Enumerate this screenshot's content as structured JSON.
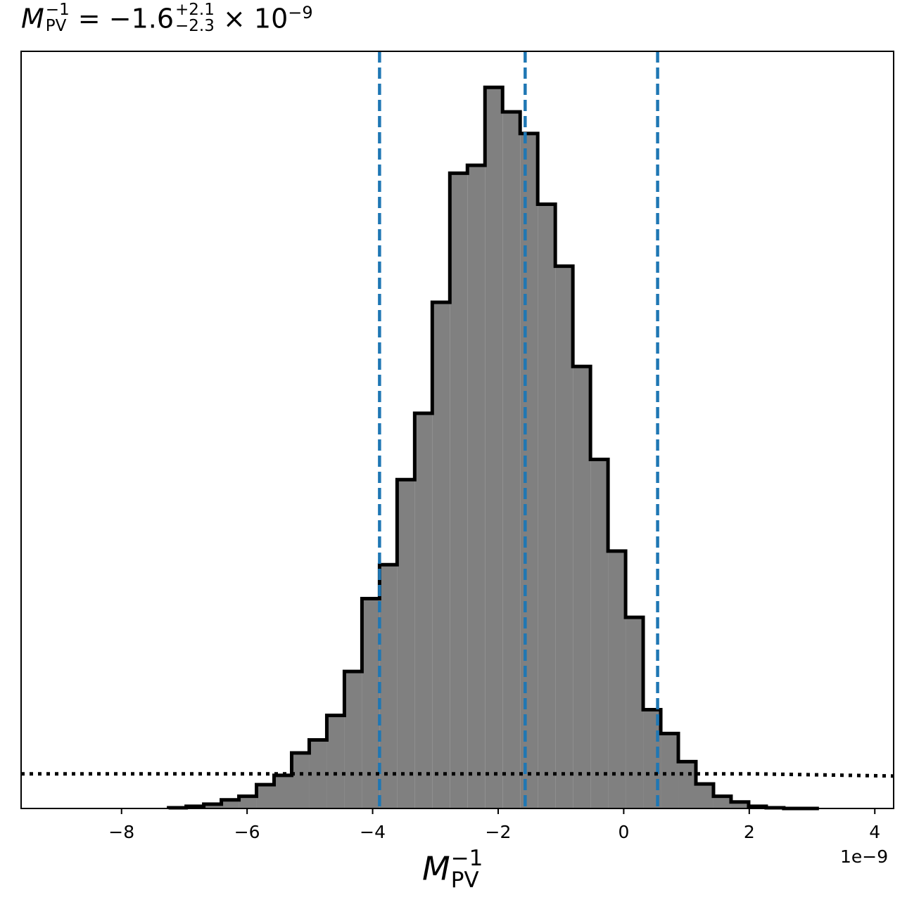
{
  "title": {
    "symbol": "M",
    "symbol_sub": "PV",
    "symbol_sup": "−1",
    "equals": "=",
    "value": "−1.6",
    "plus_err": "+2.1",
    "minus_err": "−2.3",
    "times_power": "× 10",
    "exponent": "−9"
  },
  "xlabel": {
    "symbol": "M",
    "sub": "PV",
    "sup": "−1"
  },
  "offset_text": "1e−9",
  "chart_data": {
    "type": "histogram",
    "x_scale": 1e-09,
    "xlim": [
      -9.6,
      4.3
    ],
    "ylim": [
      0,
      1.05
    ],
    "x_ticks": [
      -8,
      -6,
      -4,
      -2,
      0,
      2,
      4
    ],
    "x_tick_labels": [
      "−8",
      "−6",
      "−4",
      "−2",
      "0",
      "2",
      "4"
    ],
    "y_ticks_shown": false,
    "bins": {
      "edges": [
        -7.25,
        -6.97,
        -6.69,
        -6.41,
        -6.13,
        -5.85,
        -5.57,
        -5.29,
        -5.01,
        -4.73,
        -4.45,
        -4.17,
        -3.89,
        -3.61,
        -3.33,
        -3.05,
        -2.77,
        -2.49,
        -2.21,
        -1.93,
        -1.65,
        -1.37,
        -1.09,
        -0.81,
        -0.53,
        -0.25,
        0.03,
        0.31,
        0.59,
        0.87,
        1.15,
        1.43,
        1.71,
        1.99,
        2.27,
        2.55,
        2.83,
        3.11
      ],
      "heights": [
        0.001,
        0.003,
        0.006,
        0.012,
        0.017,
        0.033,
        0.046,
        0.077,
        0.095,
        0.129,
        0.19,
        0.291,
        0.338,
        0.456,
        0.548,
        0.702,
        0.881,
        0.892,
        1.0,
        0.966,
        0.936,
        0.838,
        0.752,
        0.613,
        0.484,
        0.357,
        0.265,
        0.137,
        0.104,
        0.065,
        0.034,
        0.017,
        0.009,
        0.003,
        0.001,
        0.0,
        0.0
      ]
    },
    "vlines": {
      "style": "dashed",
      "color": "#1f77b4",
      "values": [
        -3.89,
        -1.57,
        0.54
      ]
    },
    "dotted_line": {
      "style": "dotted",
      "color": "#000000",
      "x": [
        -9.6,
        2.1,
        4.3
      ],
      "y": [
        0.048,
        0.048,
        0.045
      ]
    },
    "fill_color": "#808080",
    "edge_color": "#000000"
  }
}
